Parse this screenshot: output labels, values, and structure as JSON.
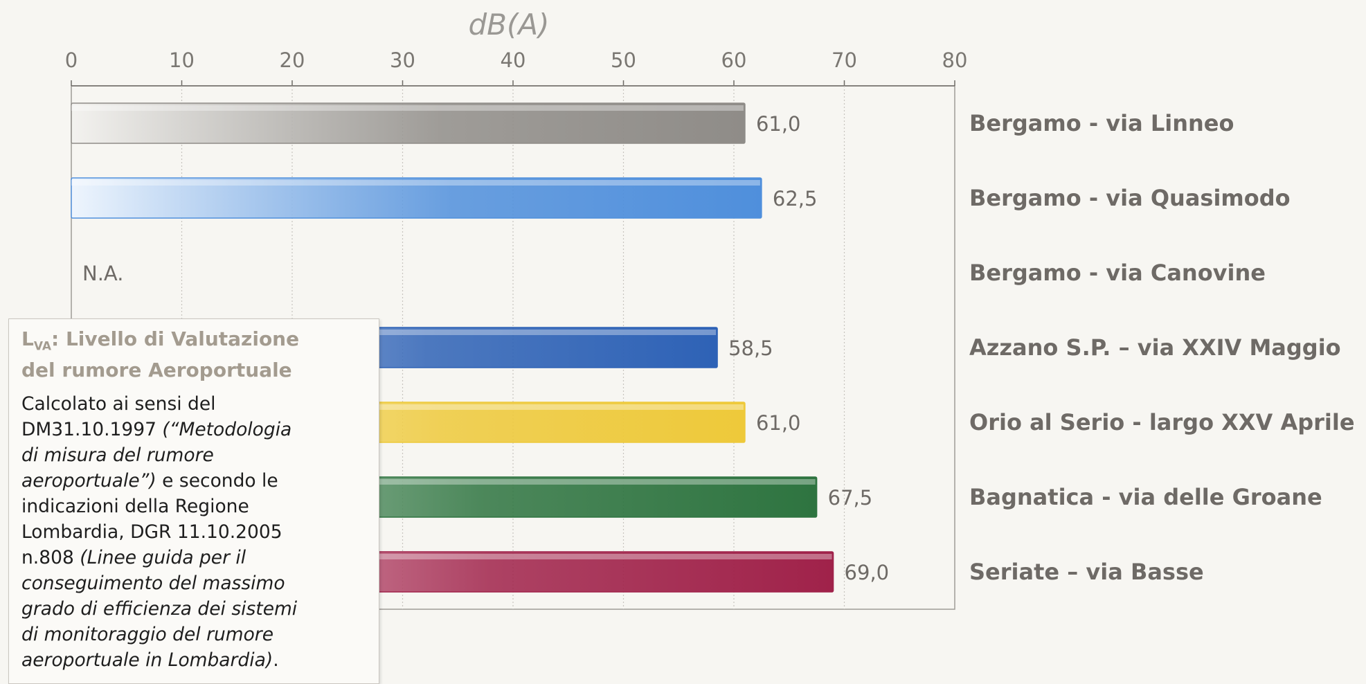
{
  "chart_data": {
    "type": "bar",
    "orientation": "horizontal",
    "title": "dB(A)",
    "xlim": [
      0,
      80
    ],
    "xticks": [
      "0",
      "10",
      "20",
      "30",
      "40",
      "50",
      "60",
      "70",
      "80"
    ],
    "grid": true,
    "categories": [
      "Bergamo - via Linneo",
      "Bergamo - via Quasimodo",
      "Bergamo - via Canovine",
      "Azzano S.P. – via XXIV Maggio",
      "Orio al Serio - largo XXV Aprile",
      "Bagnatica - via delle Groane",
      "Seriate – via Basse"
    ],
    "values": [
      61.0,
      62.5,
      null,
      58.5,
      61.0,
      67.5,
      69.0
    ],
    "value_labels": [
      "61,0",
      "62,5",
      "N.A.",
      "58,5",
      "61,0",
      "67,5",
      "69,0"
    ],
    "colors": [
      "#8f8c88",
      "#4f8fdc",
      null,
      "#2e62b6",
      "#eec93a",
      "#2e7440",
      "#a0224a"
    ],
    "colors_light": [
      "#f3f2ef",
      "#eef5fd",
      null,
      "#cfdcf2",
      "#fcf3c6",
      "#d2e4d4",
      "#f2d3dc"
    ]
  },
  "info_box": {
    "title_main": "L",
    "title_sub": "VA",
    "title_rest_line1": ": Livello di Valutazione",
    "title_line2": "del rumore Aeroportuale",
    "body_l1": "Calcolato ai sensi del",
    "body_l2a": "DM31.10.1997 ",
    "body_l2b": "(“Metodologia",
    "body_l3": "di misura del rumore",
    "body_l4a": "aeroportuale”)",
    "body_l4b": " e secondo le",
    "body_l5": "indicazioni della Regione",
    "body_l6": "Lombardia, DGR 11.10.2005",
    "body_l7a": "n.808 ",
    "body_l7b": "(Linee guida per il",
    "body_l8": "conseguimento del massimo",
    "body_l9": "grado di efficienza dei sistemi",
    "body_l10": "di monitoraggio del rumore",
    "body_l11a": "aeroportuale in Lombardia)",
    "body_l11b": "."
  }
}
